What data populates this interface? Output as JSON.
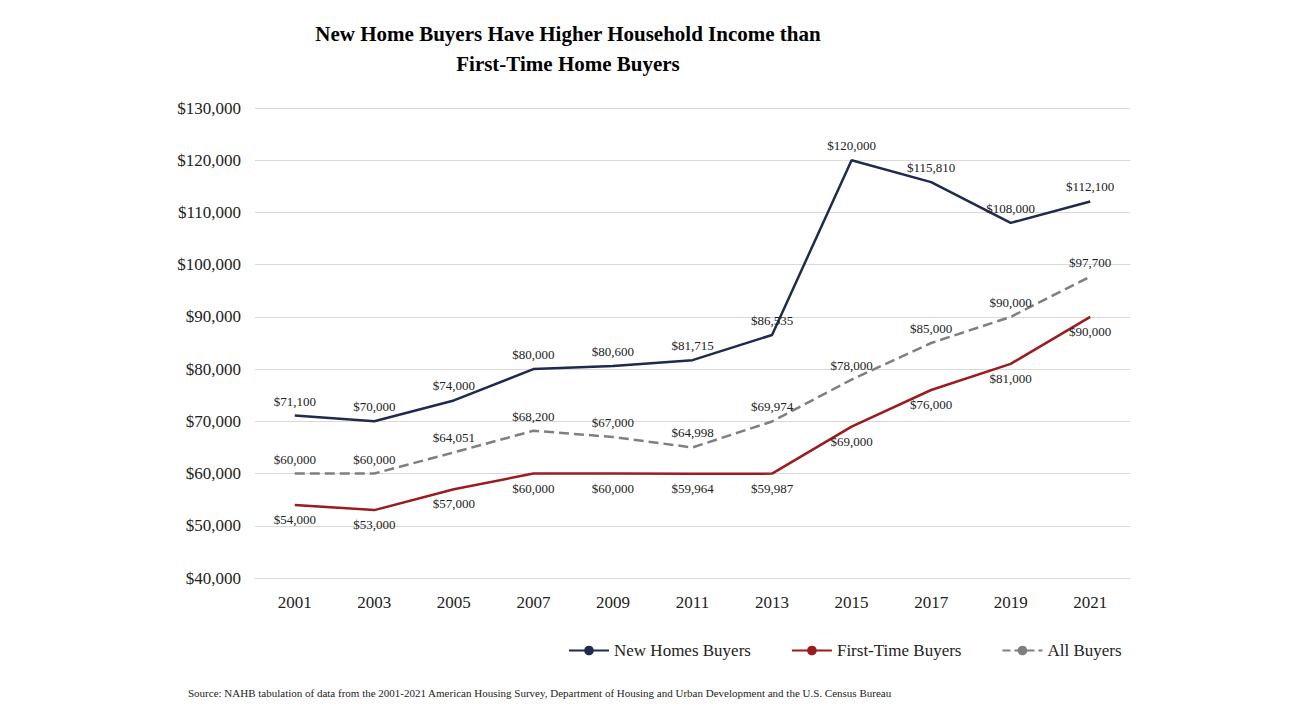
{
  "chart_data": {
    "type": "line",
    "title": "New Home Buyers Have Higher Household Income than\nFirst-Time Home Buyers",
    "source": "Source: NAHB tabulation of data from the 2001-2021 American Housing Survey, Department of Housing and Urban Development and the U.S. Census Bureau",
    "categories": [
      "2001",
      "2003",
      "2005",
      "2007",
      "2009",
      "2011",
      "2013",
      "2015",
      "2017",
      "2019",
      "2021"
    ],
    "series": [
      {
        "name": "New Homes Buyers",
        "color": "#1f2a4d",
        "line_style": "solid",
        "values": [
          71100,
          70000,
          74000,
          80000,
          80600,
          81715,
          86535,
          120000,
          115810,
          108000,
          112100
        ],
        "value_labels": [
          "$71,100",
          "$70,000",
          "$74,000",
          "$80,000",
          "$80,600",
          "$81,715",
          "$86,535",
          "$120,000",
          "$115,810",
          "$108,000",
          "$112,100"
        ]
      },
      {
        "name": "First-Time Buyers",
        "color": "#9b1c1f",
        "line_style": "solid",
        "values": [
          54000,
          53000,
          57000,
          60000,
          60000,
          59964,
          59987,
          69000,
          76000,
          81000,
          90000
        ],
        "value_labels": [
          "$54,000",
          "$53,000",
          "$57,000",
          "$60,000",
          "$60,000",
          "$59,964",
          "$59,987",
          "$69,000",
          "$76,000",
          "$81,000",
          "$90,000"
        ]
      },
      {
        "name": "All Buyers",
        "color": "#7f7f7f",
        "line_style": "dashed",
        "values": [
          60000,
          60000,
          64051,
          68200,
          67000,
          64998,
          69974,
          78000,
          85000,
          90000,
          97700
        ],
        "value_labels": [
          "$60,000",
          "$60,000",
          "$64,051",
          "$68,200",
          "$67,000",
          "$64,998",
          "$69,974",
          "$78,000",
          "$85,000",
          "$90,000",
          "$97,700"
        ]
      }
    ],
    "ylim": [
      40000,
      130000
    ],
    "yticks": [
      {
        "value": 40000,
        "label": "$40,000"
      },
      {
        "value": 50000,
        "label": "$50,000"
      },
      {
        "value": 60000,
        "label": "$60,000"
      },
      {
        "value": 70000,
        "label": "$70,000"
      },
      {
        "value": 80000,
        "label": "$80,000"
      },
      {
        "value": 90000,
        "label": "$90,000"
      },
      {
        "value": 100000,
        "label": "$100,000"
      },
      {
        "value": 110000,
        "label": "$110,000"
      },
      {
        "value": 120000,
        "label": "$120,000"
      },
      {
        "value": 130000,
        "label": "$130,000"
      }
    ],
    "grid": true,
    "legend": "bottom",
    "data_labels": true
  }
}
